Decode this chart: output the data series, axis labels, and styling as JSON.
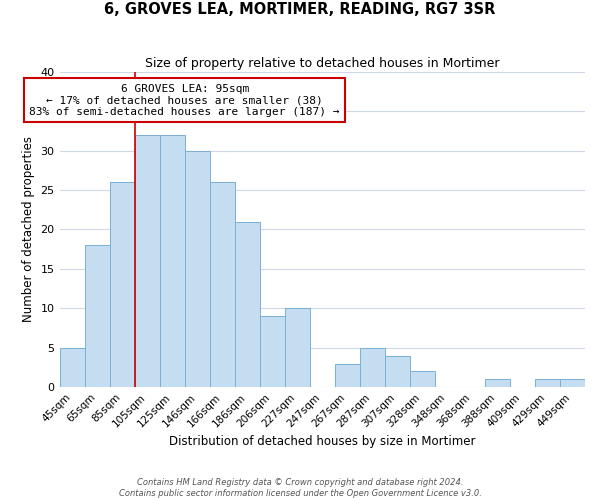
{
  "title": "6, GROVES LEA, MORTIMER, READING, RG7 3SR",
  "subtitle": "Size of property relative to detached houses in Mortimer",
  "xlabel": "Distribution of detached houses by size in Mortimer",
  "ylabel": "Number of detached properties",
  "bar_color": "#c5ddf0",
  "bar_edge_color": "#7ab0d4",
  "background_color": "#ffffff",
  "grid_color": "#d0d8e8",
  "categories": [
    "45sqm",
    "65sqm",
    "85sqm",
    "105sqm",
    "125sqm",
    "146sqm",
    "166sqm",
    "186sqm",
    "206sqm",
    "227sqm",
    "247sqm",
    "267sqm",
    "287sqm",
    "307sqm",
    "328sqm",
    "348sqm",
    "368sqm",
    "388sqm",
    "409sqm",
    "429sqm",
    "449sqm"
  ],
  "values": [
    5,
    18,
    26,
    32,
    32,
    30,
    26,
    21,
    9,
    10,
    0,
    3,
    5,
    4,
    2,
    0,
    0,
    1,
    0,
    1,
    1
  ],
  "ylim": [
    0,
    40
  ],
  "yticks": [
    0,
    5,
    10,
    15,
    20,
    25,
    30,
    35,
    40
  ],
  "property_line_color": "#cc0000",
  "annotation_box_text": "6 GROVES LEA: 95sqm\n← 17% of detached houses are smaller (38)\n83% of semi-detached houses are larger (187) →",
  "annotation_box_edge_color": "#cc0000",
  "annotation_box_facecolor": "#ffffff",
  "footer_line1": "Contains HM Land Registry data © Crown copyright and database right 2024.",
  "footer_line2": "Contains public sector information licensed under the Open Government Licence v3.0."
}
